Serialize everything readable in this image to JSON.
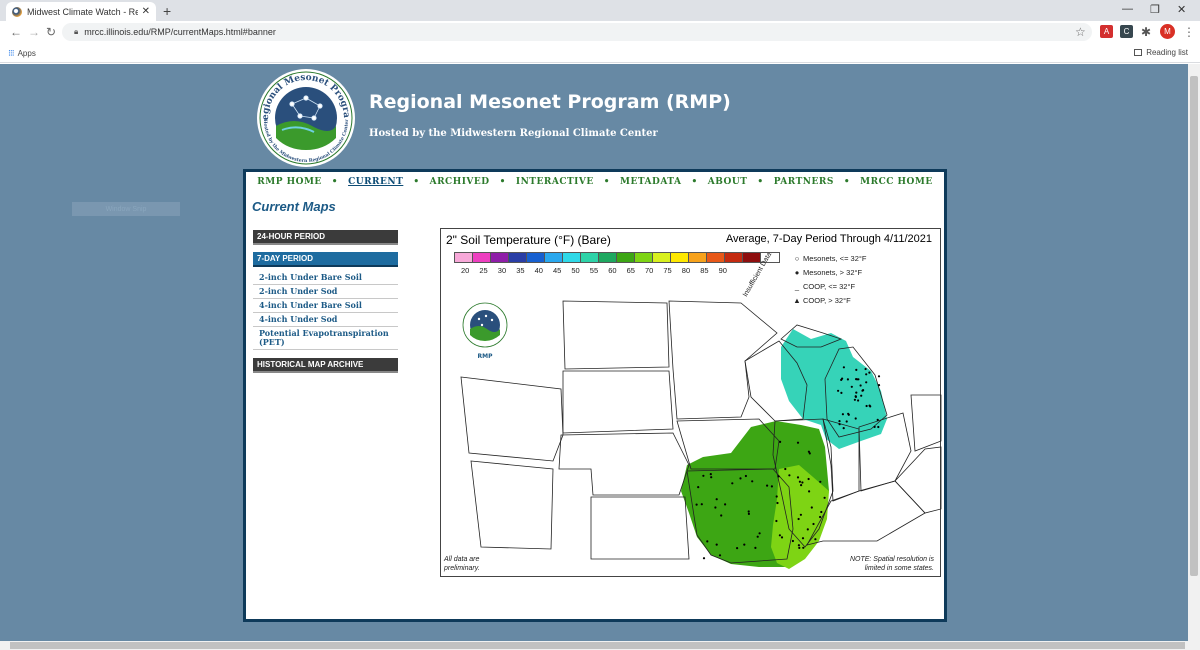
{
  "browser": {
    "tab_title": "Midwest Climate Watch - Region",
    "url": "mrcc.illinois.edu/RMP/currentMaps.html#banner",
    "bookmarks_apps": "Apps",
    "reading_list": "Reading list",
    "avatar_letter": "M"
  },
  "header": {
    "title": "Regional Mesonet Program (RMP)",
    "subtitle": "Hosted by the Midwestern Regional Climate Center",
    "logo_text_top": "Regional Mesonet Program",
    "logo_text_bottom": "Hosted by the Midwestern Regional Climate Center",
    "window_tag": "Window Snip"
  },
  "nav": {
    "items": [
      "RMP HOME",
      "CURRENT",
      "ARCHIVED",
      "INTERACTIVE",
      "METADATA",
      "ABOUT",
      "PARTNERS",
      "MRCC HOME"
    ],
    "active": "CURRENT"
  },
  "page_heading": "Current Maps",
  "sidebar": {
    "header_24h": "24-HOUR PERIOD",
    "header_7day": "7-DAY PERIOD",
    "links": [
      "2-inch Under Bare Soil",
      "2-inch Under Sod",
      "4-inch Under Bare Soil",
      "4-inch Under Sod",
      "Potential Evapotranspiration (PET)"
    ],
    "header_archive": "HISTORICAL MAP ARCHIVE"
  },
  "map": {
    "title": "2\" Soil Temperature (°F) (Bare)",
    "period": "Average, 7-Day Period Through 4/11/2021",
    "legend_ticks": [
      "20",
      "25",
      "30",
      "35",
      "40",
      "45",
      "50",
      "55",
      "60",
      "65",
      "70",
      "75",
      "80",
      "85",
      "90"
    ],
    "legend_colors": [
      "#f7a8d8",
      "#ee3fc0",
      "#8f1ea8",
      "#2a3ea6",
      "#1760d0",
      "#2aa8ee",
      "#2fd9e8",
      "#2ed3a8",
      "#1ea860",
      "#3da614",
      "#7ed414",
      "#d8f01e",
      "#ffe800",
      "#f7a21c",
      "#e85818",
      "#c42a10",
      "#8e0e0e",
      "#ffffff"
    ],
    "insufficient_label": "Insufficient Data",
    "symbol_legend": [
      {
        "symbol": "○",
        "label": "Mesonets, <= 32°F"
      },
      {
        "symbol": "●",
        "label": "Mesonets, > 32°F"
      },
      {
        "symbol": "_",
        "label": "COOP, <= 32°F"
      },
      {
        "symbol": "▲",
        "label": "COOP, > 32°F"
      }
    ],
    "note_left": "All data are preliminary.",
    "note_right": "NOTE: Spatial resolution is limited in some states.",
    "mini_logo_label": "RMP",
    "region_colors": {
      "teal": "#36d3b8",
      "green_dark": "#3da614",
      "green_light": "#7ed414"
    }
  }
}
